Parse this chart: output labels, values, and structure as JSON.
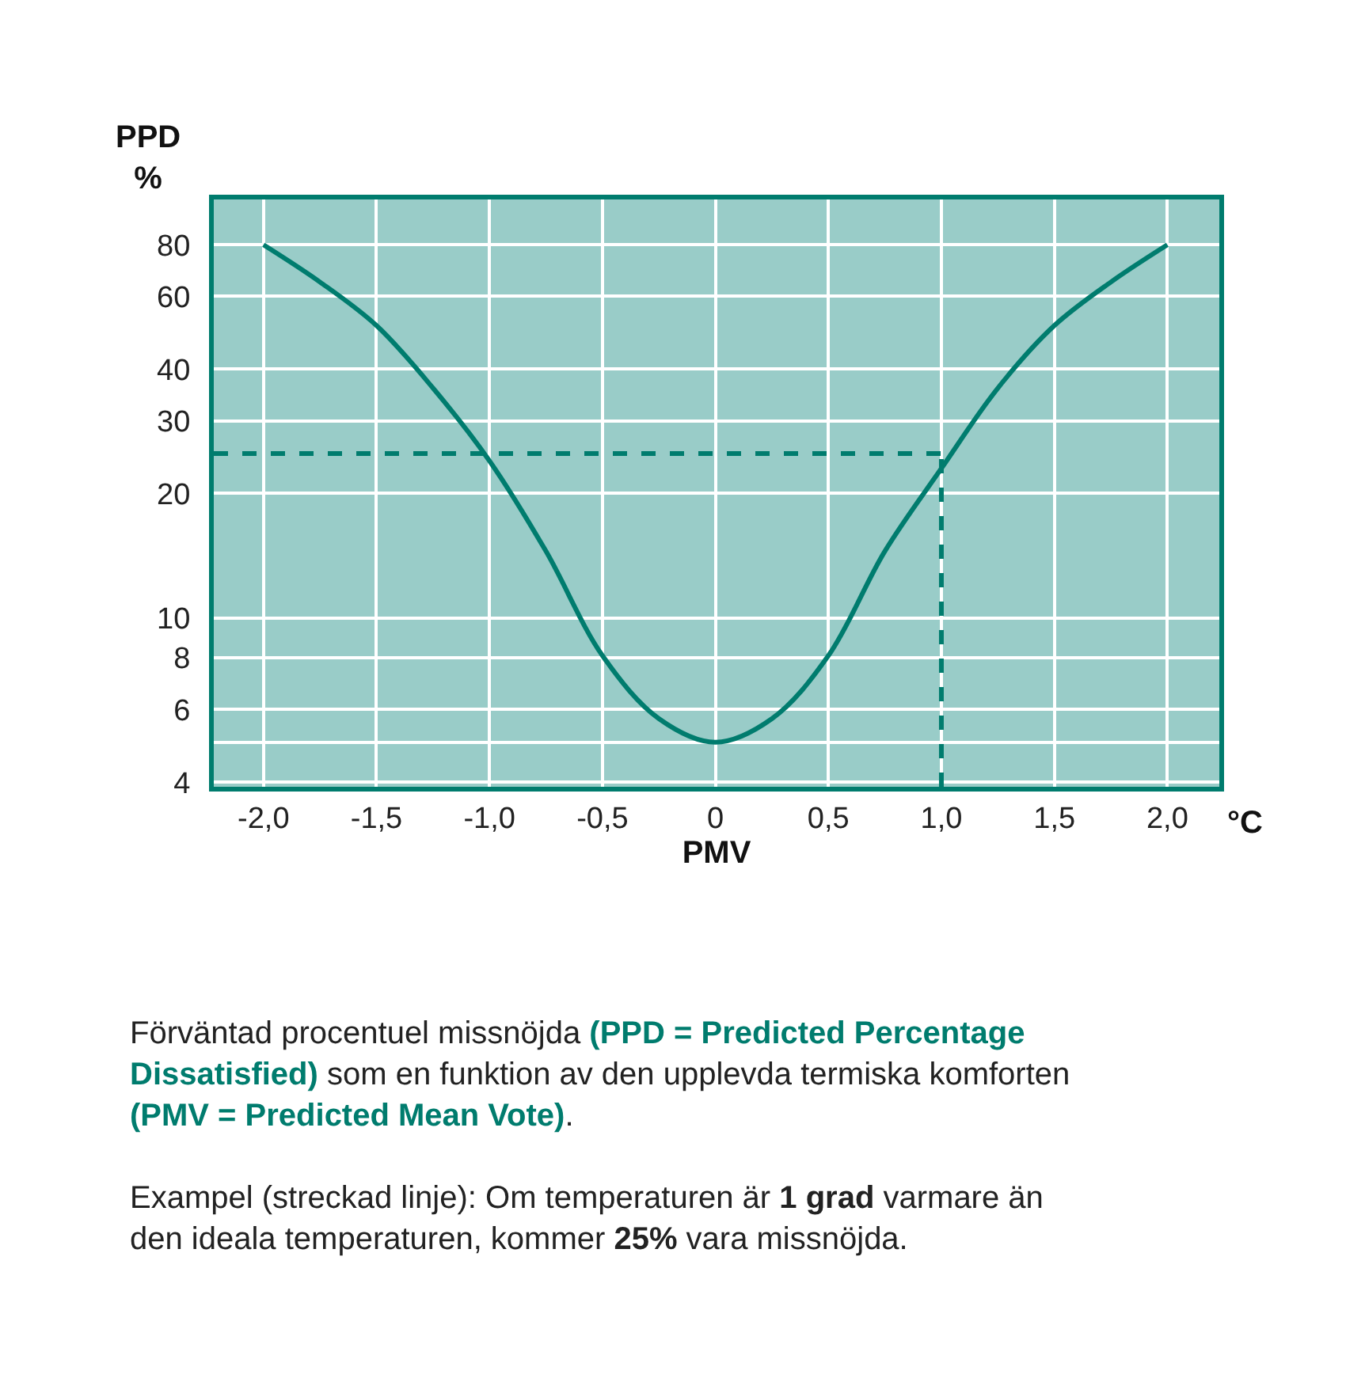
{
  "chart_data": {
    "type": "line",
    "x": [
      -2.0,
      -1.75,
      -1.5,
      -1.25,
      -1.0,
      -0.75,
      -0.5,
      -0.25,
      0,
      0.25,
      0.5,
      0.75,
      1.0,
      1.25,
      1.5,
      1.75,
      2.0
    ],
    "series": [
      {
        "color": "#007c6e",
        "values": [
          80,
          65,
          51,
          36,
          24,
          14.5,
          8.1,
          5.7,
          5,
          5.7,
          8.1,
          14.5,
          23,
          36,
          51,
          65,
          80
        ]
      }
    ],
    "xlabel": "PMV",
    "ylabel": "PPD\n%",
    "xlim": [
      -2.22,
      2.23
    ],
    "xticks": [
      {
        "value": -2,
        "label": "-2,0"
      },
      {
        "value": -1.5,
        "label": "-1,5"
      },
      {
        "value": -1,
        "label": "-1,0"
      },
      {
        "value": -0.5,
        "label": "-0,5"
      },
      0,
      {
        "value": 0.5,
        "label": "0,5"
      },
      {
        "value": 1,
        "label": "1,0"
      },
      {
        "value": 1.5,
        "label": "1,5"
      },
      {
        "value": 2,
        "label": "2,0"
      }
    ],
    "ylim": [
      3.9,
      103
    ],
    "yticks": [
      4,
      {
        "value": 5,
        "label": null
      },
      6,
      8,
      10,
      20,
      30,
      40,
      60,
      80
    ],
    "log": "y",
    "grid": true,
    "marker": "none",
    "line_style": "solid",
    "ref_lines": [
      {
        "axis": "y",
        "value": 25,
        "color": "#007c6e",
        "line_style": "dashed"
      },
      {
        "axis": "x",
        "value": 1.0,
        "color": "#007c6e",
        "line_style": "dashed"
      }
    ],
    "annotations": [
      "°C",
      "Förväntad procentuel missnöjda ",
      "(PPD = Predicted Percentage",
      "Dissatisfied)",
      " som en funktion av den upplevda termiska komforten",
      "(PMV = Predicted Mean Vote)",
      ".",
      "Exampel (streckad linje): Om temperaturen är ",
      "1 grad",
      " varmare än",
      "den ideala temperaturen, kommer ",
      "25%",
      " vara missnöjda."
    ]
  }
}
